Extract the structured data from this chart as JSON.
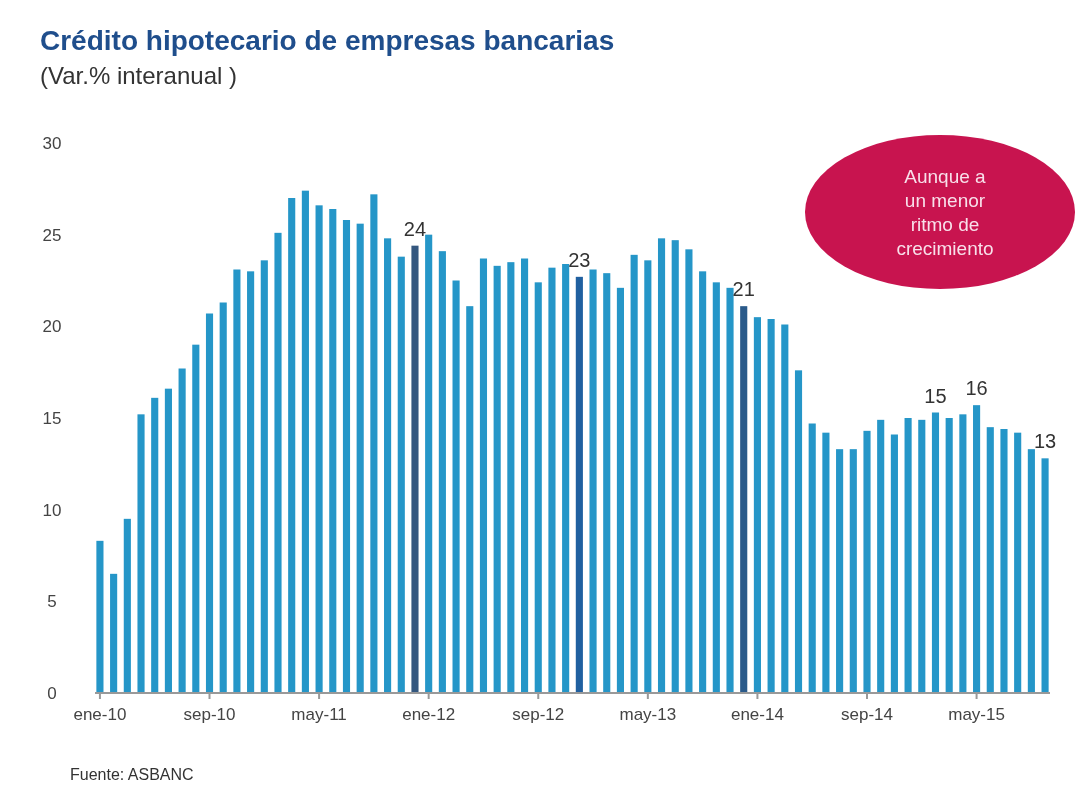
{
  "chart_data": {
    "type": "bar",
    "title": "Crédito hipotecario de empresas bancarias",
    "subtitle": "(Var.% interanual )",
    "categories": [
      "ene-10",
      null,
      null,
      null,
      null,
      null,
      null,
      null,
      "sep-10",
      null,
      null,
      null,
      null,
      null,
      null,
      null,
      "may-11",
      null,
      null,
      null,
      null,
      null,
      null,
      null,
      "ene-12",
      null,
      null,
      null,
      null,
      null,
      null,
      null,
      "sep-12",
      null,
      null,
      null,
      null,
      null,
      null,
      null,
      "may-13",
      null,
      null,
      null,
      null,
      null,
      null,
      null,
      "ene-14",
      null,
      null,
      null,
      null,
      null,
      null,
      null,
      "sep-14",
      null,
      null,
      null,
      null,
      null,
      null,
      null,
      "may-15",
      null,
      null,
      null,
      null,
      null
    ],
    "values": [
      8.3,
      6.5,
      9.5,
      15.2,
      16.1,
      16.6,
      17.7,
      19.0,
      20.7,
      21.3,
      23.1,
      23.0,
      23.6,
      25.1,
      27.0,
      27.4,
      26.6,
      26.4,
      25.8,
      25.6,
      27.2,
      24.8,
      23.8,
      24.4,
      25.0,
      24.1,
      22.5,
      21.1,
      23.7,
      23.3,
      23.5,
      23.7,
      22.4,
      23.2,
      23.4,
      22.7,
      23.1,
      22.9,
      22.1,
      23.9,
      23.6,
      24.8,
      24.7,
      24.2,
      23.0,
      22.4,
      22.1,
      21.1,
      20.5,
      20.4,
      20.1,
      17.6,
      14.7,
      14.2,
      13.3,
      13.3,
      14.3,
      14.9,
      14.1,
      15.0,
      14.9,
      15.3,
      15.0,
      15.2,
      15.7,
      14.5,
      14.4,
      14.2,
      13.3,
      12.8
    ],
    "colors": [
      "#2596c8",
      "#2596c8",
      "#2596c8",
      "#2596c8",
      "#2596c8",
      "#2596c8",
      "#2596c8",
      "#2596c8",
      "#2596c8",
      "#2596c8",
      "#2596c8",
      "#2596c8",
      "#2596c8",
      "#2596c8",
      "#2596c8",
      "#2596c8",
      "#2596c8",
      "#2596c8",
      "#2596c8",
      "#2596c8",
      "#2596c8",
      "#2596c8",
      "#2596c8",
      "#34577f",
      "#2596c8",
      "#2596c8",
      "#2596c8",
      "#2596c8",
      "#2596c8",
      "#2596c8",
      "#2596c8",
      "#2596c8",
      "#2596c8",
      "#2596c8",
      "#2596c8",
      "#2060a0",
      "#2596c8",
      "#2596c8",
      "#2596c8",
      "#2596c8",
      "#2596c8",
      "#2596c8",
      "#2596c8",
      "#2596c8",
      "#2596c8",
      "#2596c8",
      "#2596c8",
      "#2a5a8a",
      "#2596c8",
      "#2596c8",
      "#2596c8",
      "#2596c8",
      "#2596c8",
      "#2596c8",
      "#2596c8",
      "#2596c8",
      "#2596c8",
      "#2596c8",
      "#2596c8",
      "#2596c8",
      "#2596c8",
      "#2596c8",
      "#2596c8",
      "#2596c8",
      "#2596c8",
      "#2596c8",
      "#2596c8",
      "#2596c8",
      "#2596c8",
      "#2596c8"
    ],
    "value_labels": [
      null,
      null,
      null,
      null,
      null,
      null,
      null,
      null,
      null,
      null,
      null,
      null,
      null,
      null,
      null,
      null,
      null,
      null,
      null,
      null,
      null,
      null,
      null,
      "24",
      null,
      null,
      null,
      null,
      null,
      null,
      null,
      null,
      null,
      null,
      null,
      "23",
      null,
      null,
      null,
      null,
      null,
      null,
      null,
      null,
      null,
      null,
      null,
      "21",
      null,
      null,
      null,
      null,
      null,
      null,
      null,
      null,
      null,
      null,
      null,
      null,
      null,
      "15",
      null,
      null,
      "16",
      null,
      null,
      null,
      null,
      "13"
    ],
    "ylim": [
      0,
      30
    ],
    "yticks": [
      0,
      5,
      10,
      15,
      20,
      25,
      30
    ],
    "grid": false,
    "annotations": [
      "Aunque a un menor ritmo de crecimiento",
      "Fuente: ASBANC"
    ]
  }
}
